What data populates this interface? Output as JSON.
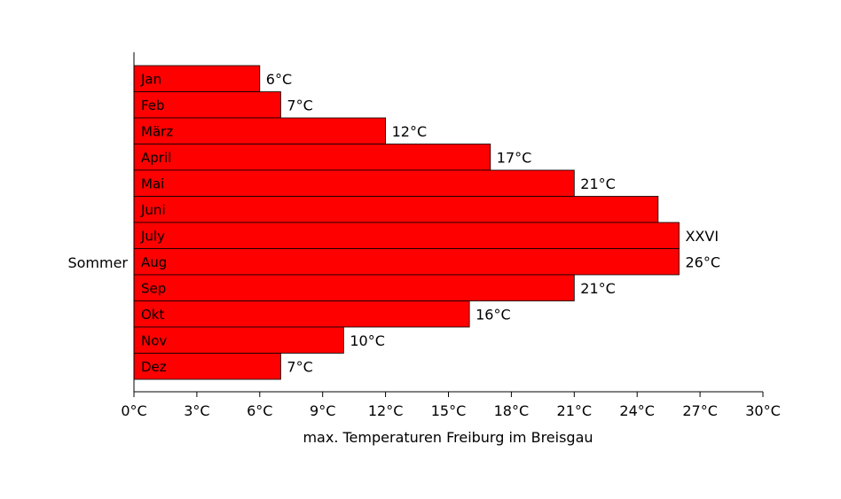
{
  "chart_data": {
    "type": "bar",
    "orientation": "horizontal",
    "categories": [
      "Jan",
      "Feb",
      "März",
      "April",
      "Mai",
      "Juni",
      "July",
      "Aug",
      "Sep",
      "Okt",
      "Nov",
      "Dez"
    ],
    "values": [
      6,
      7,
      12,
      17,
      21,
      25,
      26,
      26,
      21,
      16,
      10,
      7
    ],
    "value_labels": [
      "6°C",
      "7°C",
      "12°C",
      "17°C",
      "21°C",
      "",
      "XXVI",
      "26°C",
      "21°C",
      "16°C",
      "10°C",
      "7°C"
    ],
    "group_label": "Sommer",
    "xlabel": "max. Temperaturen Freiburg im Breisgau",
    "xlim": [
      0,
      30
    ],
    "xticks": [
      0,
      3,
      6,
      9,
      12,
      15,
      18,
      21,
      24,
      27,
      30
    ],
    "xtick_labels": [
      "0°C",
      "3°C",
      "6°C",
      "9°C",
      "12°C",
      "15°C",
      "18°C",
      "21°C",
      "24°C",
      "27°C",
      "30°C"
    ],
    "bar_color": "#ff0000",
    "grid": false
  }
}
